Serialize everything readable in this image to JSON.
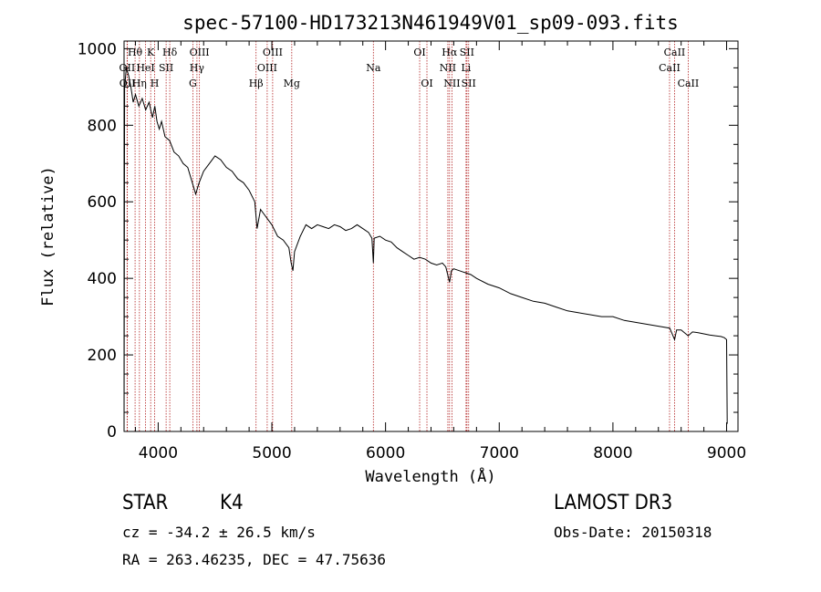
{
  "chart_data": {
    "type": "line",
    "title": "spec-57100-HD173213N461949V01_sp09-093.fits",
    "xlabel": "Wavelength (Å)",
    "ylabel": "Flux (relative)",
    "xlim": [
      3700,
      9100
    ],
    "ylim": [
      0,
      1020
    ],
    "xticks": [
      4000,
      5000,
      6000,
      7000,
      8000,
      9000
    ],
    "yticks": [
      0,
      200,
      400,
      600,
      800,
      1000
    ],
    "xtick_labels": [
      "4000",
      "5000",
      "6000",
      "7000",
      "8000",
      "9000"
    ],
    "ytick_labels": [
      "0",
      "200",
      "400",
      "600",
      "800",
      "1000"
    ],
    "line_color": "#000000",
    "marker_color": "#b22222",
    "series": [
      {
        "name": "flux",
        "x": [
          3700,
          3705,
          3720,
          3740,
          3760,
          3780,
          3800,
          3830,
          3860,
          3890,
          3920,
          3950,
          3970,
          3990,
          4010,
          4030,
          4060,
          4100,
          4140,
          4180,
          4220,
          4260,
          4300,
          4330,
          4360,
          4400,
          4450,
          4500,
          4550,
          4600,
          4650,
          4700,
          4750,
          4800,
          4850,
          4870,
          4900,
          4950,
          5000,
          5050,
          5100,
          5150,
          5170,
          5185,
          5200,
          5250,
          5300,
          5350,
          5400,
          5450,
          5500,
          5550,
          5600,
          5650,
          5700,
          5750,
          5800,
          5850,
          5880,
          5893,
          5900,
          5950,
          6000,
          6050,
          6100,
          6150,
          6200,
          6250,
          6300,
          6350,
          6400,
          6450,
          6500,
          6530,
          6563,
          6580,
          6600,
          6650,
          6700,
          6750,
          6800,
          6900,
          7000,
          7100,
          7200,
          7300,
          7400,
          7500,
          7600,
          7700,
          7800,
          7900,
          8000,
          8100,
          8200,
          8300,
          8400,
          8500,
          8542,
          8560,
          8600,
          8662,
          8700,
          8750,
          8800,
          8850,
          8900,
          8950,
          8980,
          9000,
          9005
        ],
        "y": [
          0,
          900,
          950,
          930,
          900,
          860,
          880,
          850,
          870,
          840,
          860,
          820,
          850,
          810,
          790,
          810,
          770,
          760,
          730,
          720,
          700,
          690,
          650,
          620,
          650,
          680,
          700,
          720,
          710,
          690,
          680,
          660,
          650,
          630,
          600,
          530,
          580,
          560,
          540,
          510,
          500,
          480,
          440,
          420,
          470,
          510,
          540,
          530,
          540,
          535,
          530,
          540,
          535,
          525,
          530,
          540,
          530,
          520,
          505,
          440,
          505,
          510,
          500,
          495,
          480,
          470,
          460,
          450,
          455,
          450,
          440,
          435,
          440,
          430,
          390,
          420,
          425,
          420,
          415,
          410,
          400,
          385,
          375,
          360,
          350,
          340,
          335,
          325,
          315,
          310,
          305,
          300,
          300,
          290,
          285,
          280,
          275,
          270,
          240,
          265,
          265,
          250,
          260,
          258,
          255,
          252,
          250,
          248,
          245,
          240,
          20
        ]
      }
    ],
    "annotations": [
      {
        "label": "Hθ",
        "x": 3797,
        "row": 1
      },
      {
        "label": "OII",
        "x": 3727,
        "row": 2
      },
      {
        "label": "OII",
        "x": 3729,
        "row": 3
      },
      {
        "label": "Hη",
        "x": 3835,
        "row": 3
      },
      {
        "label": "HeI",
        "x": 3889,
        "row": 2
      },
      {
        "label": "K",
        "x": 3934,
        "row": 1
      },
      {
        "label": "H",
        "x": 3969,
        "row": 3
      },
      {
        "label": "SII",
        "x": 4070,
        "row": 2
      },
      {
        "label": "Hδ",
        "x": 4102,
        "row": 1
      },
      {
        "label": "OIII",
        "x": 4363,
        "row": 1
      },
      {
        "label": "Hγ",
        "x": 4341,
        "row": 2
      },
      {
        "label": "G",
        "x": 4305,
        "row": 3
      },
      {
        "label": "Hβ",
        "x": 4861,
        "row": 3
      },
      {
        "label": "OIII",
        "x": 5007,
        "row": 1
      },
      {
        "label": "OIII",
        "x": 4959,
        "row": 2
      },
      {
        "label": "Mg",
        "x": 5175,
        "row": 3
      },
      {
        "label": "Na",
        "x": 5893,
        "row": 2
      },
      {
        "label": "OI",
        "x": 6300,
        "row": 1
      },
      {
        "label": "OI",
        "x": 6364,
        "row": 3
      },
      {
        "label": "Hα",
        "x": 6563,
        "row": 1
      },
      {
        "label": "NII",
        "x": 6548,
        "row": 2
      },
      {
        "label": "NII",
        "x": 6584,
        "row": 3
      },
      {
        "label": "SII",
        "x": 6716,
        "row": 1
      },
      {
        "label": "Li",
        "x": 6708,
        "row": 2
      },
      {
        "label": "SII",
        "x": 6731,
        "row": 3
      },
      {
        "label": "CaII",
        "x": 8542,
        "row": 1
      },
      {
        "label": "CaII",
        "x": 8498,
        "row": 2
      },
      {
        "label": "CaII",
        "x": 8662,
        "row": 3
      }
    ]
  },
  "info": {
    "class_label": "STAR",
    "subclass": "K4",
    "survey": "LAMOST DR3",
    "cz": "cz = -34.2 ± 26.5 km/s",
    "obs_date": "Obs-Date: 20150318",
    "coords": "RA = 263.46235, DEC =  47.75636"
  }
}
